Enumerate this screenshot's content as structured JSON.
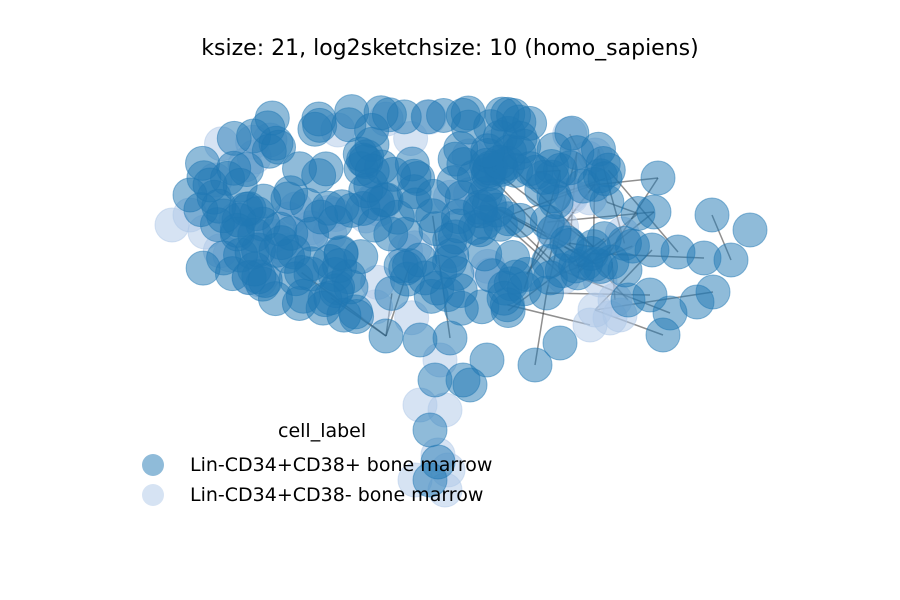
{
  "title": "ksize: 21, log2sketchsize: 10 (homo_sapiens)",
  "legend": {
    "title": "cell_label",
    "entries": [
      {
        "label": "Lin-CD34+CD38+ bone marrow",
        "color": "#1f77b4"
      },
      {
        "label": "Lin-CD34+CD38- bone marrow",
        "color": "#aec7e8"
      }
    ]
  },
  "colors": {
    "node_plus": "#1f77b4",
    "node_minus": "#aec7e8",
    "edge": "#333333"
  }
}
